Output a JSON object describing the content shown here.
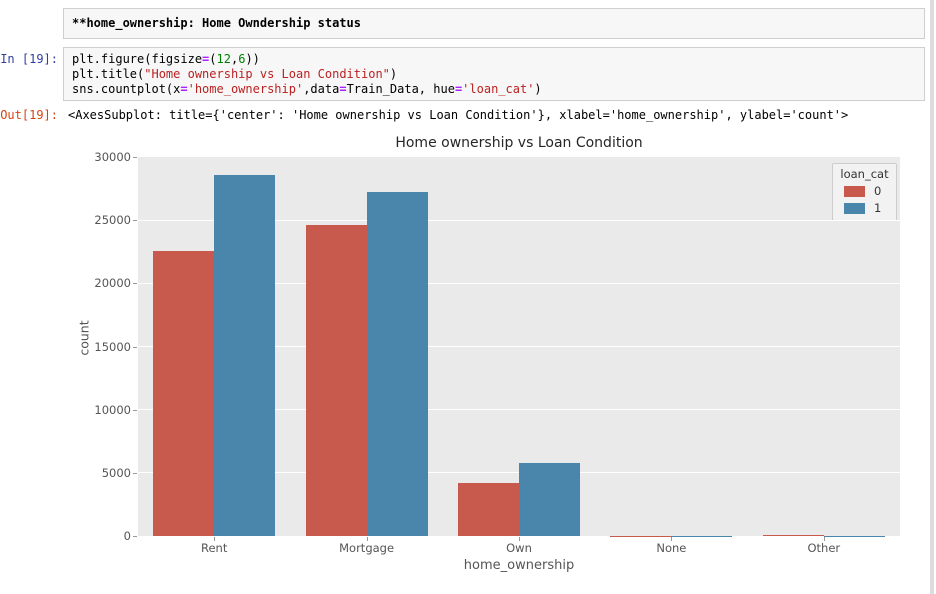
{
  "notebook": {
    "markdown_cell": {
      "text": "**home_ownership: Home Owndership status"
    },
    "code_cell": {
      "prompt": "In [19]:",
      "lines": [
        [
          {
            "t": "plt.figure(figsize",
            "c": "p"
          },
          {
            "t": "=",
            "c": "o"
          },
          {
            "t": "(",
            "c": "p"
          },
          {
            "t": "12",
            "c": "n"
          },
          {
            "t": ",",
            "c": "p"
          },
          {
            "t": "6",
            "c": "n"
          },
          {
            "t": "))",
            "c": "p"
          }
        ],
        [
          {
            "t": "plt.title(",
            "c": "p"
          },
          {
            "t": "\"Home ownership vs Loan Condition\"",
            "c": "s"
          },
          {
            "t": ")",
            "c": "p"
          }
        ],
        [
          {
            "t": "sns.countplot(x",
            "c": "p"
          },
          {
            "t": "=",
            "c": "o"
          },
          {
            "t": "'home_ownership'",
            "c": "s"
          },
          {
            "t": ",data",
            "c": "p"
          },
          {
            "t": "=",
            "c": "o"
          },
          {
            "t": "Train_Data, hue",
            "c": "p"
          },
          {
            "t": "=",
            "c": "o"
          },
          {
            "t": "'loan_cat'",
            "c": "s"
          },
          {
            "t": ")",
            "c": "p"
          }
        ]
      ]
    },
    "output": {
      "prompt": "Out[19]:",
      "text": "<AxesSubplot: title={'center': 'Home ownership vs Loan Condition'}, xlabel='home_ownership', ylabel='count'>"
    }
  },
  "chart_data": {
    "type": "bar",
    "title": "Home ownership vs Loan Condition",
    "xlabel": "home_ownership",
    "ylabel": "count",
    "categories": [
      "Rent",
      "Mortgage",
      "Own",
      "None",
      "Other"
    ],
    "series": [
      {
        "name": "0",
        "color": "#c75a4c",
        "values": [
          22600,
          24600,
          4200,
          30,
          110
        ]
      },
      {
        "name": "1",
        "color": "#4a86ab",
        "values": [
          28600,
          27200,
          5800,
          10,
          40
        ]
      }
    ],
    "ylim": [
      0,
      30000
    ],
    "yticks": [
      0,
      5000,
      10000,
      15000,
      20000,
      25000,
      30000
    ],
    "grid": true,
    "legend": {
      "title": "loan_cat",
      "position": "upper right"
    },
    "plot_bg": "#eaeaea",
    "grid_color": "#ffffff"
  }
}
